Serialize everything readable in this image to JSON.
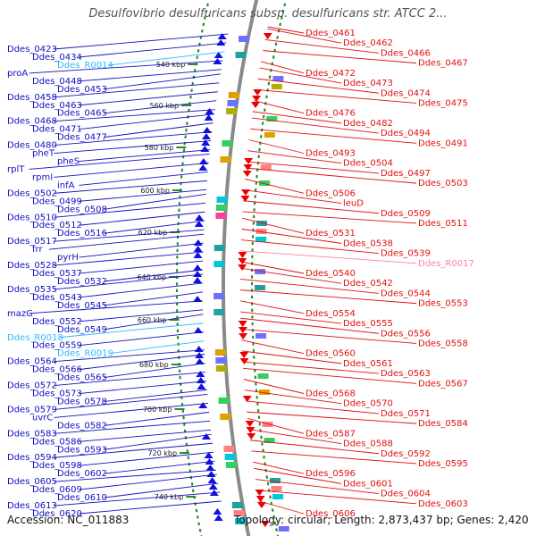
{
  "title": "Desulfovibrio desulfuricans subsp. desulfuricans str. ATCC 2...",
  "accession": "Accession: NC_011883",
  "topology": "Topology: circular; Length: 2,873,437 bp; Genes: 2,420",
  "colors": {
    "forward_label": "#1010c0",
    "reverse_label": "#e01010",
    "rna_forward_label": "#30b8ff",
    "rna_reverse_label": "#ff80a0",
    "forward_arrow": "#1010e0",
    "reverse_arrow": "#ee0000",
    "backbone": "#8a8a8a",
    "dotted_tick": "#2a8a2a"
  },
  "kbp_ticks": [
    "540 kbp",
    "560 kbp",
    "580 kbp",
    "600 kbp",
    "620 kbp",
    "640 kbp",
    "660 kbp",
    "680 kbp",
    "700 kbp",
    "720 kbp",
    "740 kbp"
  ],
  "left_labels": [
    {
      "text": "Ddes_0423",
      "type": "gene"
    },
    {
      "text": "Ddes_0434",
      "type": "gene"
    },
    {
      "text": "Ddes_R0014",
      "type": "rna"
    },
    {
      "text": "proA",
      "type": "gene"
    },
    {
      "text": "Ddes_0448",
      "type": "gene"
    },
    {
      "text": "Ddes_0453",
      "type": "gene"
    },
    {
      "text": "Ddes_0458",
      "type": "gene"
    },
    {
      "text": "Ddes_0463",
      "type": "gene"
    },
    {
      "text": "Ddes_0465",
      "type": "gene"
    },
    {
      "text": "Ddes_0468",
      "type": "gene"
    },
    {
      "text": "Ddes_0471",
      "type": "gene"
    },
    {
      "text": "Ddes_0477",
      "type": "gene"
    },
    {
      "text": "Ddes_0480",
      "type": "gene"
    },
    {
      "text": "pheT",
      "type": "gene"
    },
    {
      "text": "pheS",
      "type": "gene"
    },
    {
      "text": "rplT",
      "type": "gene"
    },
    {
      "text": "rpmI",
      "type": "gene"
    },
    {
      "text": "infA",
      "type": "gene"
    },
    {
      "text": "Ddes_0502",
      "type": "gene"
    },
    {
      "text": "Ddes_0499",
      "type": "gene"
    },
    {
      "text": "Ddes_0508",
      "type": "gene"
    },
    {
      "text": "Ddes_0510",
      "type": "gene"
    },
    {
      "text": "Ddes_0512",
      "type": "gene"
    },
    {
      "text": "Ddes_0516",
      "type": "gene"
    },
    {
      "text": "Ddes_0517",
      "type": "gene"
    },
    {
      "text": "frr",
      "type": "gene"
    },
    {
      "text": "pyrH",
      "type": "gene"
    },
    {
      "text": "Ddes_0528",
      "type": "gene"
    },
    {
      "text": "Ddes_0537",
      "type": "gene"
    },
    {
      "text": "Ddes_0532",
      "type": "gene"
    },
    {
      "text": "Ddes_0535",
      "type": "gene"
    },
    {
      "text": "Ddes_0543",
      "type": "gene"
    },
    {
      "text": "Ddes_0545",
      "type": "gene"
    },
    {
      "text": "mazG",
      "type": "gene"
    },
    {
      "text": "Ddes_0552",
      "type": "gene"
    },
    {
      "text": "Ddes_0549",
      "type": "gene"
    },
    {
      "text": "Ddes_R0018",
      "type": "rna"
    },
    {
      "text": "Ddes_0559",
      "type": "gene"
    },
    {
      "text": "Ddes_R0019",
      "type": "rna"
    },
    {
      "text": "Ddes_0564",
      "type": "gene"
    },
    {
      "text": "Ddes_0566",
      "type": "gene"
    },
    {
      "text": "Ddes_0565",
      "type": "gene"
    },
    {
      "text": "Ddes_0572",
      "type": "gene"
    },
    {
      "text": "Ddes_0573",
      "type": "gene"
    },
    {
      "text": "Ddes_0578",
      "type": "gene"
    },
    {
      "text": "Ddes_0579",
      "type": "gene"
    },
    {
      "text": "uvrC",
      "type": "gene"
    },
    {
      "text": "Ddes_0582",
      "type": "gene"
    },
    {
      "text": "Ddes_0583",
      "type": "gene"
    },
    {
      "text": "Ddes_0586",
      "type": "gene"
    },
    {
      "text": "Ddes_0593",
      "type": "gene"
    },
    {
      "text": "Ddes_0594",
      "type": "gene"
    },
    {
      "text": "Ddes_0598",
      "type": "gene"
    },
    {
      "text": "Ddes_0602",
      "type": "gene"
    },
    {
      "text": "Ddes_0605",
      "type": "gene"
    },
    {
      "text": "Ddes_0609",
      "type": "gene"
    },
    {
      "text": "Ddes_0610",
      "type": "gene"
    },
    {
      "text": "Ddes_0613",
      "type": "gene"
    },
    {
      "text": "Ddes_0620",
      "type": "gene"
    }
  ],
  "right_labels": [
    {
      "text": "Ddes_0461",
      "type": "gene"
    },
    {
      "text": "Ddes_0462",
      "type": "gene"
    },
    {
      "text": "Ddes_0466",
      "type": "gene"
    },
    {
      "text": "Ddes_0467",
      "type": "gene"
    },
    {
      "text": "Ddes_0472",
      "type": "gene"
    },
    {
      "text": "Ddes_0473",
      "type": "gene"
    },
    {
      "text": "Ddes_0474",
      "type": "gene"
    },
    {
      "text": "Ddes_0475",
      "type": "gene"
    },
    {
      "text": "Ddes_0476",
      "type": "gene"
    },
    {
      "text": "Ddes_0482",
      "type": "gene"
    },
    {
      "text": "Ddes_0494",
      "type": "gene"
    },
    {
      "text": "Ddes_0491",
      "type": "gene"
    },
    {
      "text": "Ddes_0493",
      "type": "gene"
    },
    {
      "text": "Ddes_0504",
      "type": "gene"
    },
    {
      "text": "Ddes_0497",
      "type": "gene"
    },
    {
      "text": "Ddes_0503",
      "type": "gene"
    },
    {
      "text": "Ddes_0506",
      "type": "gene"
    },
    {
      "text": "leuD",
      "type": "gene"
    },
    {
      "text": "Ddes_0509",
      "type": "gene"
    },
    {
      "text": "Ddes_0511",
      "type": "gene"
    },
    {
      "text": "Ddes_0531",
      "type": "gene"
    },
    {
      "text": "Ddes_0538",
      "type": "gene"
    },
    {
      "text": "Ddes_0539",
      "type": "gene"
    },
    {
      "text": "Ddes_R0017",
      "type": "rna"
    },
    {
      "text": "Ddes_0540",
      "type": "gene"
    },
    {
      "text": "Ddes_0542",
      "type": "gene"
    },
    {
      "text": "Ddes_0544",
      "type": "gene"
    },
    {
      "text": "Ddes_0553",
      "type": "gene"
    },
    {
      "text": "Ddes_0554",
      "type": "gene"
    },
    {
      "text": "Ddes_0555",
      "type": "gene"
    },
    {
      "text": "Ddes_0556",
      "type": "gene"
    },
    {
      "text": "Ddes_0558",
      "type": "gene"
    },
    {
      "text": "Ddes_0560",
      "type": "gene"
    },
    {
      "text": "Ddes_0561",
      "type": "gene"
    },
    {
      "text": "Ddes_0563",
      "type": "gene"
    },
    {
      "text": "Ddes_0567",
      "type": "gene"
    },
    {
      "text": "Ddes_0568",
      "type": "gene"
    },
    {
      "text": "Ddes_0570",
      "type": "gene"
    },
    {
      "text": "Ddes_0571",
      "type": "gene"
    },
    {
      "text": "Ddes_0584",
      "type": "gene"
    },
    {
      "text": "Ddes_0587",
      "type": "gene"
    },
    {
      "text": "Ddes_0588",
      "type": "gene"
    },
    {
      "text": "Ddes_0592",
      "type": "gene"
    },
    {
      "text": "Ddes_0595",
      "type": "gene"
    },
    {
      "text": "Ddes_0596",
      "type": "gene"
    },
    {
      "text": "Ddes_0601",
      "type": "gene"
    },
    {
      "text": "Ddes_0604",
      "type": "gene"
    },
    {
      "text": "Ddes_0603",
      "type": "gene"
    },
    {
      "text": "Ddes_0606",
      "type": "gene"
    }
  ]
}
